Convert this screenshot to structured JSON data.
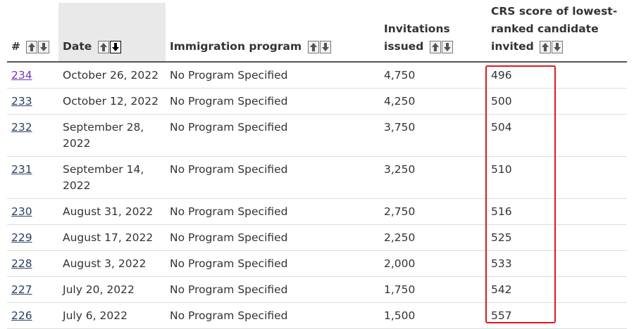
{
  "table": {
    "headers": {
      "number": "#",
      "date": "Date",
      "program": "Immigration program",
      "invitations_line1": "Invitations",
      "invitations_line2": "issued",
      "crs_line1": "CRS score of lowest-",
      "crs_line2": "ranked candidate",
      "crs_line3": "invited"
    },
    "rows": [
      {
        "num": "234",
        "date": "October 26, 2022",
        "program": "No Program Specified",
        "invitations": "4,750",
        "crs": "496"
      },
      {
        "num": "233",
        "date": "October 12, 2022",
        "program": "No Program Specified",
        "invitations": "4,250",
        "crs": "500"
      },
      {
        "num": "232",
        "date": "September 28, 2022",
        "program": "No Program Specified",
        "invitations": "3,750",
        "crs": "504"
      },
      {
        "num": "231",
        "date": "September 14, 2022",
        "program": "No Program Specified",
        "invitations": "3,250",
        "crs": "510"
      },
      {
        "num": "230",
        "date": "August 31, 2022",
        "program": "No Program Specified",
        "invitations": "2,750",
        "crs": "516"
      },
      {
        "num": "229",
        "date": "August 17, 2022",
        "program": "No Program Specified",
        "invitations": "2,250",
        "crs": "525"
      },
      {
        "num": "228",
        "date": "August 3, 2022",
        "program": "No Program Specified",
        "invitations": "2,000",
        "crs": "533"
      },
      {
        "num": "227",
        "date": "July 20, 2022",
        "program": "No Program Specified",
        "invitations": "1,750",
        "crs": "542"
      },
      {
        "num": "226",
        "date": "July 6, 2022",
        "program": "No Program Specified",
        "invitations": "1,500",
        "crs": "557"
      }
    ]
  },
  "colors": {
    "highlight": "#e0191c",
    "visited_link": "#7834bc",
    "link": "#284162",
    "sorted_header_bg": "#e9e9e9"
  },
  "icons": {
    "sort_up": "arrow-up-icon",
    "sort_down": "arrow-down-icon"
  }
}
